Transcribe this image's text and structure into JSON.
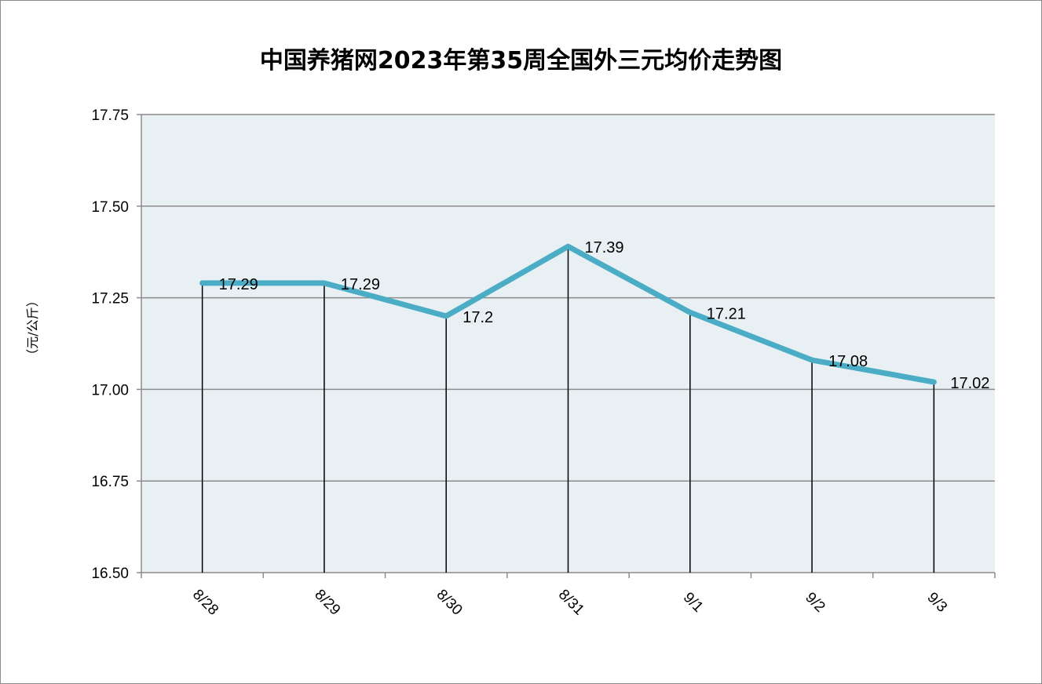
{
  "chart_data": {
    "type": "line",
    "title": "中国养猪网2023年第35周全国外三元均价走势图",
    "ylabel": "（元/公斤）",
    "xlabel": "",
    "categories": [
      "8/28",
      "8/29",
      "8/30",
      "8/31",
      "9/1",
      "9/2",
      "9/3"
    ],
    "values": [
      17.29,
      17.29,
      17.2,
      17.39,
      17.21,
      17.08,
      17.02
    ],
    "value_labels": [
      "17.29",
      "17.29",
      "17.2",
      "17.39",
      "17.21",
      "17.08",
      "17.02"
    ],
    "ylim": [
      16.5,
      17.75
    ],
    "yticks": [
      16.5,
      16.75,
      17.0,
      17.25,
      17.5,
      17.75
    ],
    "ytick_labels": [
      "16.50",
      "16.75",
      "17.00",
      "17.25",
      "17.50",
      "17.75"
    ],
    "grid": true,
    "drop_lines": true,
    "legend": "none",
    "colors": {
      "line": "#4bacc6",
      "plot_background": "#e8f0f4",
      "grid": "#8c8c8c"
    }
  }
}
